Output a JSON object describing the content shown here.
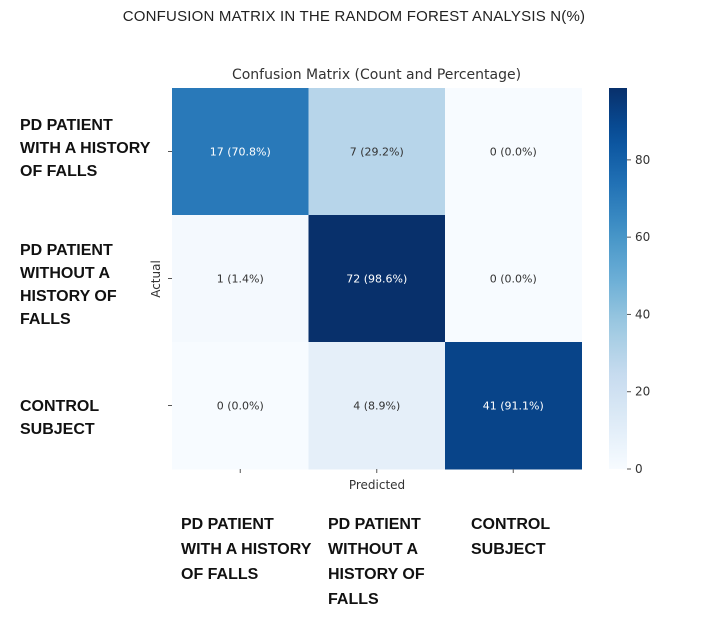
{
  "page": {
    "title": "CONFUSION MATRIX IN THE RANDOM FOREST ANALYSIS N(%)"
  },
  "chart_data": {
    "type": "heatmap",
    "title": "Confusion Matrix (Count and Percentage)",
    "xlabel": "Predicted",
    "ylabel": "Actual",
    "row_labels": [
      [
        "PD PATIENT",
        "WITH A HISTORY",
        "OF FALLS"
      ],
      [
        "PD PATIENT",
        "WITHOUT A",
        "HISTORY OF",
        "FALLS"
      ],
      [
        "CONTROL",
        "SUBJECT"
      ]
    ],
    "col_labels": [
      [
        "PD PATIENT",
        "WITH A HISTORY",
        "OF FALLS"
      ],
      [
        "PD PATIENT",
        "WITHOUT A",
        "HISTORY OF",
        "FALLS"
      ],
      [
        "CONTROL",
        "SUBJECT"
      ]
    ],
    "counts": [
      [
        17,
        7,
        0
      ],
      [
        1,
        72,
        0
      ],
      [
        0,
        4,
        41
      ]
    ],
    "percentages": [
      [
        70.8,
        29.2,
        0.0
      ],
      [
        1.4,
        98.6,
        0.0
      ],
      [
        0.0,
        8.9,
        91.1
      ]
    ],
    "cell_text": [
      [
        "17 (70.8%)",
        "7 (29.2%)",
        "0 (0.0%)"
      ],
      [
        "1 (1.4%)",
        "72 (98.6%)",
        "0 (0.0%)"
      ],
      [
        "0 (0.0%)",
        "4 (8.9%)",
        "41 (91.1%)"
      ]
    ],
    "colorbar": {
      "range": [
        0,
        98.6
      ],
      "ticks": [
        0,
        20,
        40,
        60,
        80
      ],
      "colormap": "Blues"
    }
  }
}
